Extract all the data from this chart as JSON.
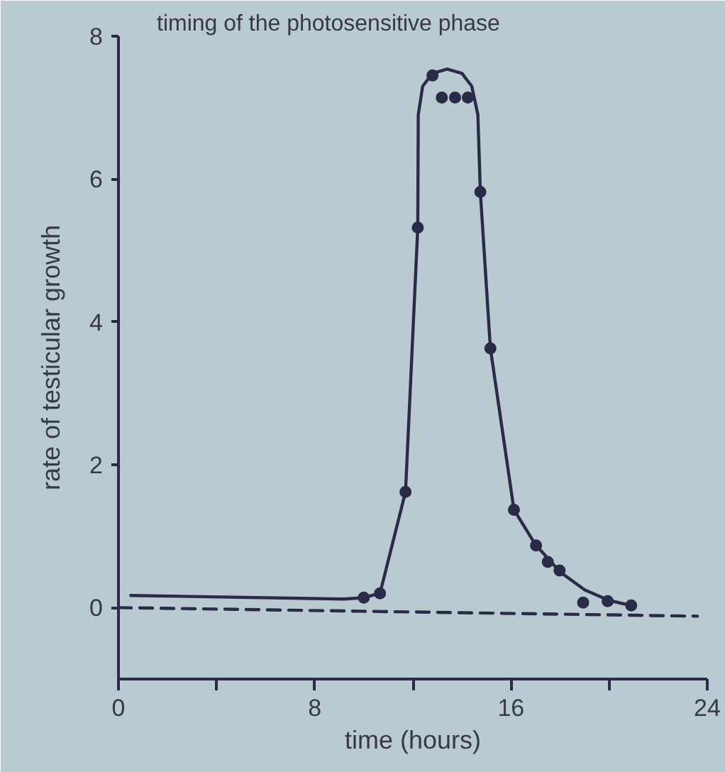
{
  "chart_data": {
    "type": "line",
    "title": "timing of the photosensitive phase",
    "xlabel": "time (hours)",
    "ylabel": "rate of testicular growth",
    "xlim": [
      0,
      24
    ],
    "ylim": [
      -1,
      8
    ],
    "xticks": [
      0,
      {
        "value": 4,
        "label": null
      },
      8,
      {
        "value": 12,
        "label": null
      },
      16,
      {
        "value": 20,
        "label": null
      },
      24
    ],
    "yticks": [
      0,
      2,
      4,
      6,
      8
    ],
    "grid": false,
    "series": [
      {
        "color": "#2b2a48",
        "line_style": "solid",
        "marker": "none",
        "x": [
          0.5,
          9.2,
          10.0,
          10.66,
          11.7,
          12.2,
          12.22,
          12.4,
          12.8,
          13.4,
          14.0,
          14.4,
          14.65,
          14.75,
          15.16,
          16.12,
          17.0,
          18.0,
          19.0,
          20.0,
          20.9
        ],
        "values": [
          0.17,
          0.12,
          0.14,
          0.2,
          1.62,
          5.32,
          6.9,
          7.3,
          7.48,
          7.54,
          7.48,
          7.3,
          6.9,
          5.82,
          3.63,
          1.37,
          0.88,
          0.5,
          0.25,
          0.1,
          0.03
        ]
      },
      {
        "color": "#2b2a48",
        "line_style": "dashed",
        "marker": "none",
        "x": [
          0,
          23.6
        ],
        "values": [
          0,
          -0.12
        ]
      },
      {
        "type": "scatter",
        "color": "#2b2a48",
        "marker": "circle",
        "x": [
          10.0,
          10.66,
          11.7,
          12.2,
          12.8,
          13.18,
          13.72,
          14.24,
          14.75,
          15.16,
          16.12,
          17.02,
          17.5,
          17.98,
          18.94,
          19.94,
          20.9
        ],
        "values": [
          0.14,
          0.2,
          1.62,
          5.32,
          7.45,
          7.14,
          7.14,
          7.14,
          5.82,
          3.63,
          1.37,
          0.87,
          0.64,
          0.52,
          0.07,
          0.09,
          0.03
        ]
      }
    ]
  }
}
